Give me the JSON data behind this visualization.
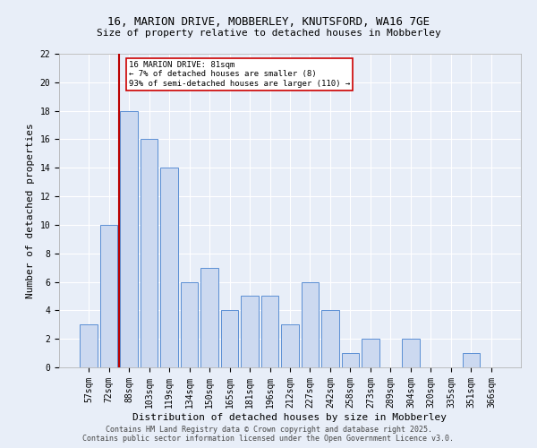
{
  "title_line1": "16, MARION DRIVE, MOBBERLEY, KNUTSFORD, WA16 7GE",
  "title_line2": "Size of property relative to detached houses in Mobberley",
  "xlabel": "Distribution of detached houses by size in Mobberley",
  "ylabel": "Number of detached properties",
  "categories": [
    "57sqm",
    "72sqm",
    "88sqm",
    "103sqm",
    "119sqm",
    "134sqm",
    "150sqm",
    "165sqm",
    "181sqm",
    "196sqm",
    "212sqm",
    "227sqm",
    "242sqm",
    "258sqm",
    "273sqm",
    "289sqm",
    "304sqm",
    "320sqm",
    "335sqm",
    "351sqm",
    "366sqm"
  ],
  "values": [
    3,
    10,
    18,
    16,
    14,
    6,
    7,
    4,
    5,
    5,
    3,
    6,
    4,
    1,
    2,
    0,
    2,
    0,
    0,
    1,
    0
  ],
  "bar_color": "#ccd9f0",
  "bar_edge_color": "#5b8fd4",
  "vline_x_idx": 1.5,
  "vline_color": "#bb0000",
  "annotation_text": "16 MARION DRIVE: 81sqm\n← 7% of detached houses are smaller (8)\n93% of semi-detached houses are larger (110) →",
  "annotation_box_color": "#ffffff",
  "annotation_box_edge_color": "#cc0000",
  "yticks": [
    0,
    2,
    4,
    6,
    8,
    10,
    12,
    14,
    16,
    18,
    20,
    22
  ],
  "ylim": [
    0,
    22
  ],
  "footer_line1": "Contains HM Land Registry data © Crown copyright and database right 2025.",
  "footer_line2": "Contains public sector information licensed under the Open Government Licence v3.0.",
  "bg_color": "#e8eef8",
  "plot_bg_color": "#e8eef8",
  "grid_color": "#ffffff",
  "title_fontsize": 9,
  "subtitle_fontsize": 8,
  "ylabel_fontsize": 8,
  "xlabel_fontsize": 8,
  "tick_fontsize": 7,
  "footer_fontsize": 6
}
